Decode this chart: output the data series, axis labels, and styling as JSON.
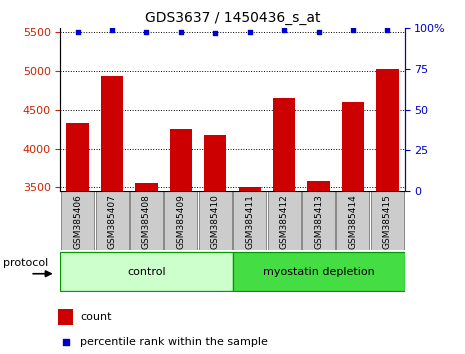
{
  "title": "GDS3637 / 1450436_s_at",
  "samples": [
    "GSM385406",
    "GSM385407",
    "GSM385408",
    "GSM385409",
    "GSM385410",
    "GSM385411",
    "GSM385412",
    "GSM385413",
    "GSM385414",
    "GSM385415"
  ],
  "counts": [
    4330,
    4940,
    3555,
    4250,
    4175,
    3500,
    4650,
    3580,
    4600,
    5030
  ],
  "percentile_ranks": [
    98,
    99,
    98,
    98,
    97,
    98,
    99,
    98,
    99,
    99
  ],
  "bar_color": "#cc0000",
  "dot_color": "#0000cc",
  "ylim_left": [
    3450,
    5550
  ],
  "ylim_right": [
    0,
    100
  ],
  "yticks_left": [
    3500,
    4000,
    4500,
    5000,
    5500
  ],
  "yticks_right": [
    0,
    25,
    50,
    75,
    100
  ],
  "groups": [
    {
      "label": "control",
      "indices": [
        0,
        1,
        2,
        3,
        4
      ],
      "color": "#ccffcc",
      "edgecolor": "#009900"
    },
    {
      "label": "myostatin depletion",
      "indices": [
        5,
        6,
        7,
        8,
        9
      ],
      "color": "#44dd44",
      "edgecolor": "#009900"
    }
  ],
  "protocol_label": "protocol",
  "legend_count_label": "count",
  "legend_pct_label": "percentile rank within the sample",
  "left_label_color": "#cc2200",
  "right_label_color": "#0000cc",
  "sample_box_color": "#cccccc",
  "sample_box_edge": "#888888"
}
